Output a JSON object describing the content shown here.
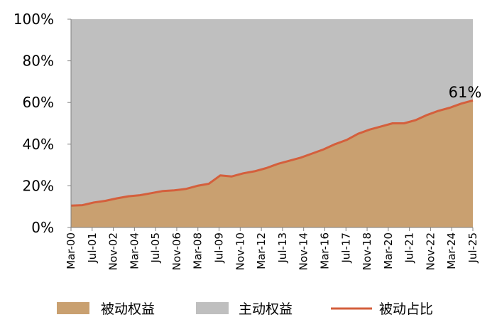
{
  "chart_data": {
    "type": "area",
    "x_ticks": [
      "Mar-00",
      "Jul-01",
      "Nov-02",
      "Mar-04",
      "Jul-05",
      "Nov-06",
      "Mar-08",
      "Jul-09",
      "Nov-10",
      "Mar-12",
      "Jul-13",
      "Nov-14",
      "Mar-16",
      "Jul-17",
      "Nov-18",
      "Mar-20",
      "Jul-21",
      "Nov-22",
      "Mar-24",
      "Jul-25"
    ],
    "y_ticks": [
      "0%",
      "20%",
      "40%",
      "60%",
      "80%",
      "100%"
    ],
    "ylim": [
      0,
      100
    ],
    "series": [
      {
        "name": "被动权益",
        "values": [
          10.5,
          10.7,
          12,
          12.8,
          14,
          15,
          15.5,
          16.5,
          17.5,
          17.8,
          18.5,
          20,
          21,
          25,
          24.5,
          26,
          27,
          28.5,
          30.5,
          32,
          33.5,
          35.5,
          37.5,
          40,
          42,
          45,
          47,
          48.5,
          50,
          50,
          51.5,
          54,
          56,
          57.5,
          59.5,
          61
        ]
      },
      {
        "name": "主动权益",
        "values": [
          89.5,
          89.3,
          88,
          87.2,
          86,
          85,
          84.5,
          83.5,
          82.5,
          82.2,
          81.5,
          80,
          79,
          75,
          75.5,
          74,
          73,
          71.5,
          69.5,
          68,
          66.5,
          64.5,
          62.5,
          60,
          58,
          55,
          53,
          51.5,
          50,
          50,
          48.5,
          46,
          44,
          42.5,
          40.5,
          39
        ]
      },
      {
        "name": "被动占比",
        "values": [
          10.5,
          10.7,
          12,
          12.8,
          14,
          15,
          15.5,
          16.5,
          17.5,
          17.8,
          18.5,
          20,
          21,
          25,
          24.5,
          26,
          27,
          28.5,
          30.5,
          32,
          33.5,
          35.5,
          37.5,
          40,
          42,
          45,
          47,
          48.5,
          50,
          50,
          51.5,
          54,
          56,
          57.5,
          59.5,
          61
        ]
      }
    ],
    "annotation": "61%",
    "legend": [
      "被动权益",
      "主动权益",
      "被动占比"
    ],
    "legend_position": "bottom",
    "grid": false,
    "colors": {
      "passive_area": "#c9a070",
      "active_area": "#bfbfbf",
      "ratio_line": "#d45f3c"
    }
  }
}
